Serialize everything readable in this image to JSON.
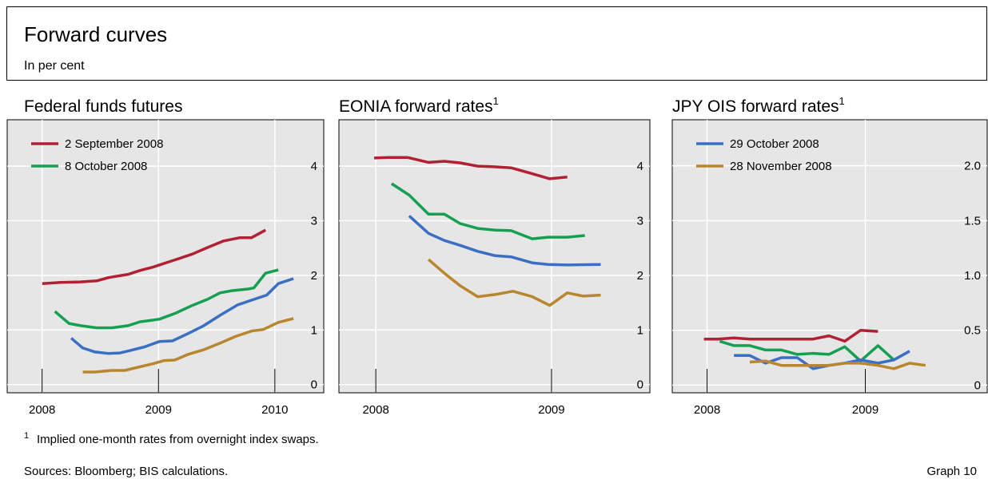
{
  "header": {
    "title": "Forward curves",
    "subtitle": "In per cent"
  },
  "chart_data": [
    {
      "type": "line",
      "title": "Federal funds futures",
      "xlim": [
        2007.7,
        2010.42
      ],
      "xticks": [
        2008,
        2009,
        2010
      ],
      "ylim": [
        -0.15,
        4.85
      ],
      "yticks": [
        0,
        1,
        2,
        3,
        4
      ],
      "grid": true,
      "legend": "top-left",
      "series": [
        {
          "name": "2 September 2008",
          "color": "#b22033",
          "x": [
            2008.0,
            2008.16,
            2008.33,
            2008.47,
            2008.57,
            2008.74,
            2008.84,
            2008.95,
            2009.05,
            2009.15,
            2009.29,
            2009.42,
            2009.56,
            2009.7,
            2009.8,
            2009.92
          ],
          "values": [
            1.85,
            1.87,
            1.88,
            1.9,
            1.96,
            2.02,
            2.09,
            2.15,
            2.22,
            2.29,
            2.39,
            2.51,
            2.63,
            2.69,
            2.69,
            2.83
          ]
        },
        {
          "name": "8 October 2008",
          "color": "#14a050",
          "x": [
            2008.11,
            2008.23,
            2008.33,
            2008.47,
            2008.6,
            2008.74,
            2008.84,
            2008.95,
            2009.01,
            2009.15,
            2009.29,
            2009.42,
            2009.53,
            2009.63,
            2009.77,
            2009.82,
            2009.92,
            2010.03
          ],
          "values": [
            1.34,
            1.12,
            1.08,
            1.04,
            1.04,
            1.08,
            1.15,
            1.18,
            1.2,
            1.31,
            1.45,
            1.56,
            1.68,
            1.72,
            1.75,
            1.77,
            2.04,
            2.1
          ]
        },
        {
          "color": "#3a6fc4",
          "x": [
            2008.25,
            2008.35,
            2008.45,
            2008.57,
            2008.67,
            2008.77,
            2008.88,
            2009.01,
            2009.12,
            2009.25,
            2009.39,
            2009.53,
            2009.68,
            2009.82,
            2009.93,
            2010.03,
            2010.16
          ],
          "values": [
            0.85,
            0.67,
            0.6,
            0.57,
            0.58,
            0.63,
            0.69,
            0.79,
            0.8,
            0.93,
            1.08,
            1.27,
            1.46,
            1.56,
            1.64,
            1.85,
            1.94
          ]
        },
        {
          "color": "#b8862e",
          "x": [
            2008.35,
            2008.45,
            2008.6,
            2008.71,
            2008.81,
            2008.95,
            2009.05,
            2009.14,
            2009.25,
            2009.39,
            2009.53,
            2009.66,
            2009.8,
            2009.9,
            2010.03,
            2010.16
          ],
          "values": [
            0.23,
            0.23,
            0.26,
            0.26,
            0.31,
            0.38,
            0.44,
            0.45,
            0.55,
            0.64,
            0.76,
            0.88,
            0.98,
            1.01,
            1.14,
            1.21
          ]
        }
      ]
    },
    {
      "type": "line",
      "title": "EONIA forward rates",
      "title_note": "1",
      "xlim": [
        2007.79,
        2009.56
      ],
      "xticks": [
        2008,
        2009
      ],
      "ylim": [
        -0.15,
        4.85
      ],
      "yticks": [
        0,
        1,
        2,
        3,
        4
      ],
      "grid": true,
      "series": [
        {
          "color": "#b22033",
          "x": [
            2007.99,
            2008.07,
            2008.18,
            2008.3,
            2008.39,
            2008.48,
            2008.58,
            2008.66,
            2008.77,
            2008.87,
            2008.99,
            2009.09
          ],
          "values": [
            4.15,
            4.16,
            4.16,
            4.07,
            4.09,
            4.06,
            4.0,
            3.99,
            3.97,
            3.88,
            3.77,
            3.8
          ]
        },
        {
          "color": "#14a050",
          "x": [
            2008.09,
            2008.19,
            2008.3,
            2008.39,
            2008.48,
            2008.58,
            2008.68,
            2008.77,
            2008.89,
            2008.98,
            2009.09,
            2009.19
          ],
          "values": [
            3.68,
            3.47,
            3.12,
            3.12,
            2.95,
            2.86,
            2.83,
            2.82,
            2.67,
            2.7,
            2.7,
            2.73
          ]
        },
        {
          "color": "#3a6fc4",
          "x": [
            2008.19,
            2008.3,
            2008.39,
            2008.48,
            2008.58,
            2008.68,
            2008.77,
            2008.89,
            2008.98,
            2009.09,
            2009.28
          ],
          "values": [
            3.09,
            2.77,
            2.64,
            2.55,
            2.44,
            2.36,
            2.34,
            2.23,
            2.2,
            2.19,
            2.2
          ]
        },
        {
          "color": "#b8862e",
          "x": [
            2008.3,
            2008.39,
            2008.48,
            2008.58,
            2008.68,
            2008.78,
            2008.89,
            2008.99,
            2009.09,
            2009.18,
            2009.28
          ],
          "values": [
            2.29,
            2.04,
            1.81,
            1.61,
            1.65,
            1.71,
            1.61,
            1.45,
            1.68,
            1.62,
            1.64
          ]
        }
      ]
    },
    {
      "type": "line",
      "title": "JPY OIS forward rates",
      "title_note": "1",
      "xlim": [
        2007.78,
        2009.77
      ],
      "xticks": [
        2008,
        2009
      ],
      "ylim": [
        -0.07,
        2.42
      ],
      "yticks": [
        0,
        0.5,
        {
          "value": 1,
          "label": "1.0"
        },
        1.5,
        {
          "value": 2,
          "label": "2.0"
        }
      ],
      "grid": true,
      "legend": "top-left",
      "series": [
        {
          "color": "#b22033",
          "x": [
            2007.98,
            2008.07,
            2008.17,
            2008.27,
            2008.37,
            2008.47,
            2008.57,
            2008.67,
            2008.77,
            2008.87,
            2008.97,
            2009.08
          ],
          "values": [
            0.42,
            0.42,
            0.43,
            0.42,
            0.42,
            0.42,
            0.42,
            0.42,
            0.45,
            0.4,
            0.5,
            0.49
          ]
        },
        {
          "color": "#14a050",
          "x": [
            2008.08,
            2008.17,
            2008.27,
            2008.37,
            2008.47,
            2008.57,
            2008.67,
            2008.77,
            2008.87,
            2008.97,
            2009.08,
            2009.18
          ],
          "values": [
            0.4,
            0.36,
            0.36,
            0.32,
            0.32,
            0.28,
            0.29,
            0.28,
            0.35,
            0.22,
            0.36,
            0.23
          ]
        },
        {
          "name": "29 October 2008",
          "color": "#3a6fc4",
          "x": [
            2008.17,
            2008.27,
            2008.37,
            2008.47,
            2008.57,
            2008.67,
            2008.77,
            2008.87,
            2008.97,
            2009.08,
            2009.18,
            2009.28
          ],
          "values": [
            0.27,
            0.27,
            0.2,
            0.25,
            0.25,
            0.15,
            0.18,
            0.2,
            0.23,
            0.2,
            0.23,
            0.31
          ]
        },
        {
          "name": "28 November 2008",
          "color": "#b8862e",
          "x": [
            2008.27,
            2008.37,
            2008.47,
            2008.57,
            2008.67,
            2008.77,
            2008.87,
            2008.97,
            2009.08,
            2009.18,
            2009.28,
            2009.38
          ],
          "values": [
            0.21,
            0.22,
            0.18,
            0.18,
            0.18,
            0.18,
            0.2,
            0.2,
            0.18,
            0.15,
            0.2,
            0.18
          ]
        }
      ]
    }
  ],
  "footnote": {
    "mark": "1",
    "text": "Implied one-month rates from overnight index swaps."
  },
  "sources": "Sources: Bloomberg; BIS calculations.",
  "graph_label": "Graph 10"
}
